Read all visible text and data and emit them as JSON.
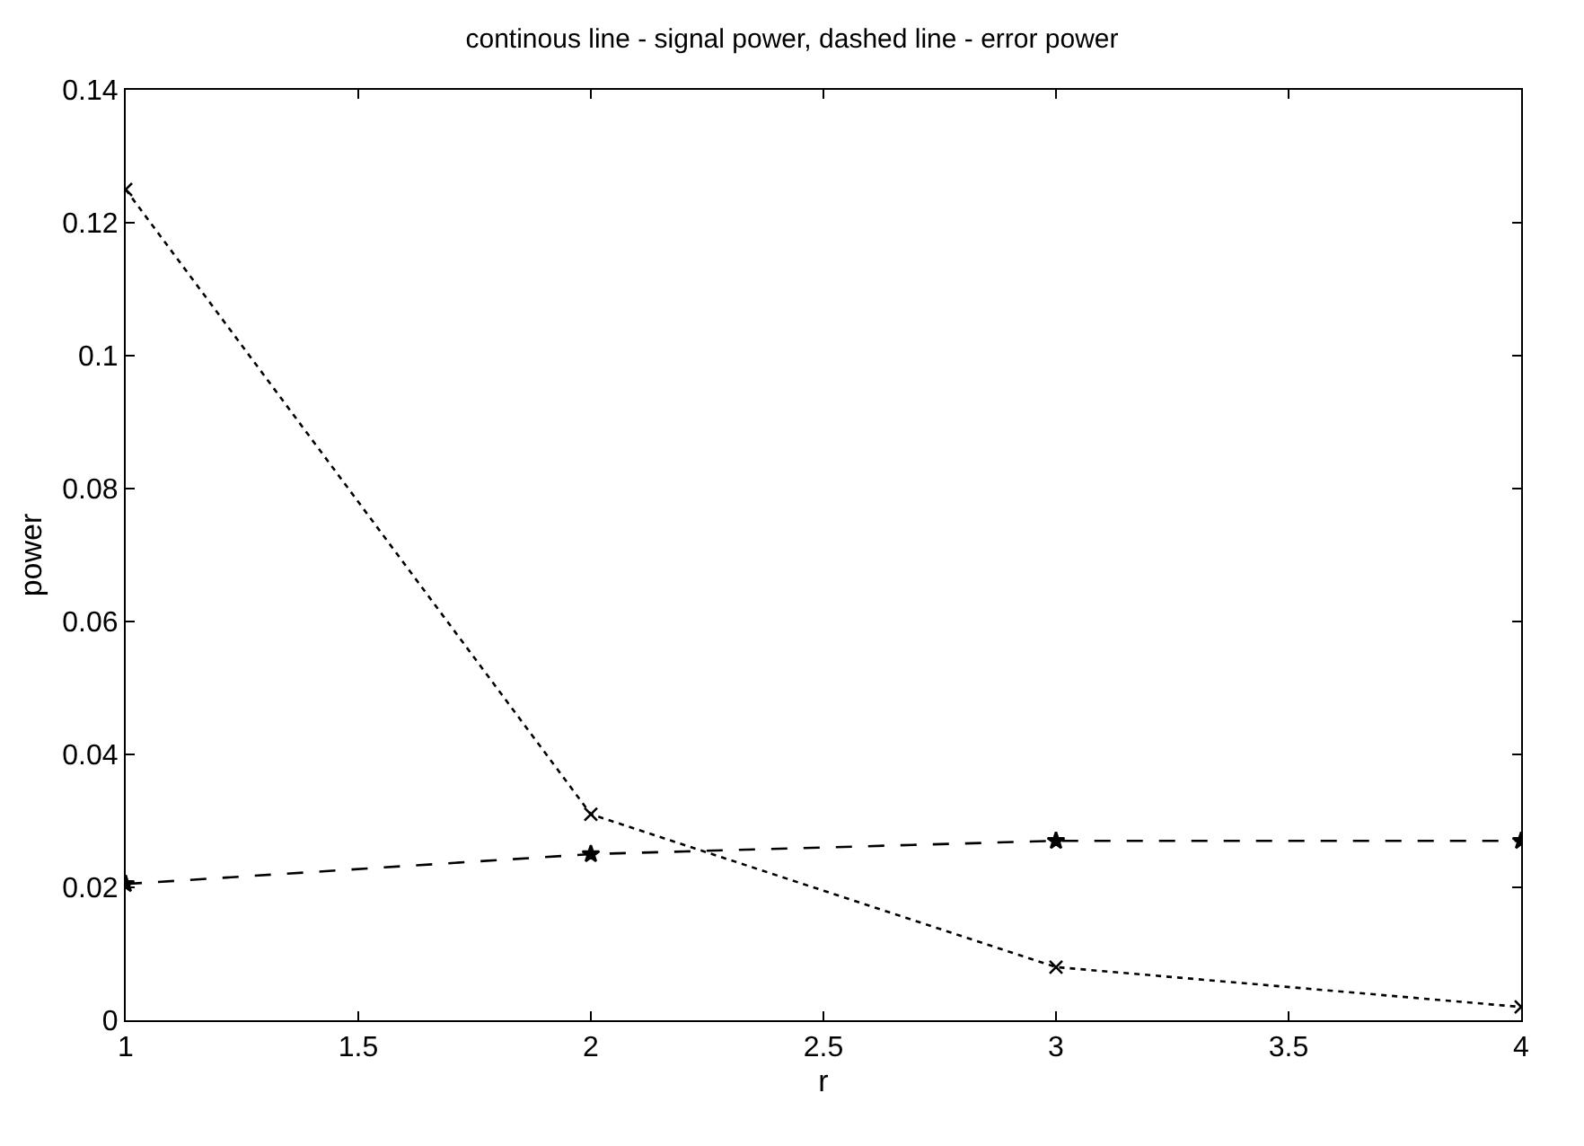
{
  "chart_data": {
    "type": "line",
    "title": "continous line - signal power, dashed line - error power",
    "xlabel": "r",
    "ylabel": "power",
    "x": [
      1,
      2,
      3,
      4
    ],
    "series": [
      {
        "color": "#000000",
        "values": [
          0.125,
          0.031,
          0.008,
          0.002
        ],
        "line_style": "dotted",
        "marker": "cross"
      },
      {
        "color": "#000000",
        "values": [
          0.0205,
          0.025,
          0.027,
          0.027
        ],
        "line_style": "dashed",
        "marker": "star"
      }
    ],
    "xlim": [
      1,
      4
    ],
    "xticks": [
      1,
      1.5,
      2,
      2.5,
      3,
      3.5,
      4
    ],
    "ylim": [
      0,
      0.14
    ],
    "yticks": [
      0,
      0.02,
      0.04,
      0.06,
      0.08,
      0.1,
      0.12,
      0.14
    ],
    "grid": false
  }
}
